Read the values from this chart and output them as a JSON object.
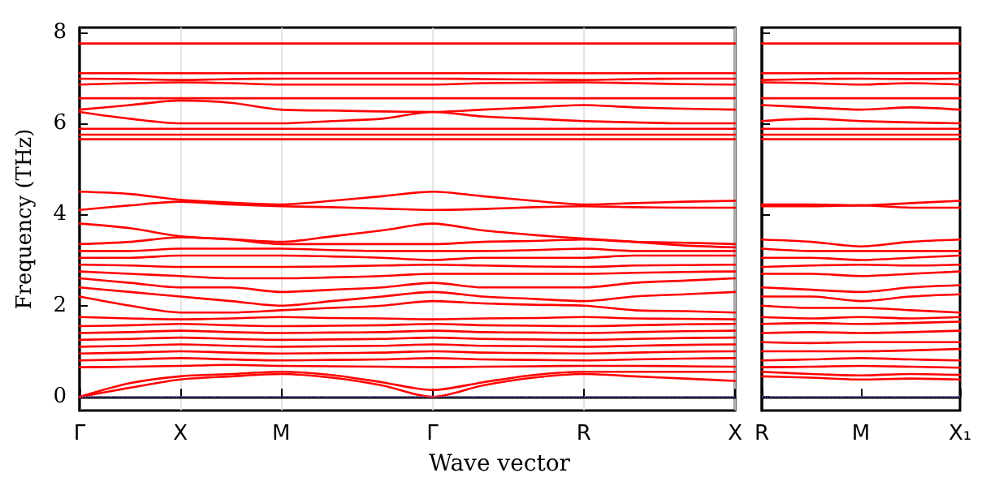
{
  "chart_data": [
    {
      "type": "line",
      "ylabel": "Frequency (THz)",
      "xlabel": "Wave vector",
      "ylim": [
        -0.3,
        8.1
      ],
      "yticks": [
        0,
        2,
        4,
        6,
        8
      ],
      "categories": [
        "Γ",
        null,
        "X",
        null,
        "M",
        null,
        null,
        "Γ",
        null,
        null,
        "R",
        null,
        null,
        "X"
      ],
      "grid": "x",
      "marker": "none",
      "line_style": "solid",
      "ref_lines": [
        {
          "axis": "y",
          "value": 0,
          "color": "#8080ff",
          "line_style": "dotted"
        }
      ],
      "series": [
        {
          "color": "#ff0000",
          "values": [
            0,
            0.2,
            0.38,
            0.45,
            0.5,
            0.42,
            0.25,
            0,
            0.25,
            0.42,
            0.5,
            0.45,
            0.4,
            0.35
          ]
        },
        {
          "color": "#ff0000",
          "values": [
            0,
            0.3,
            0.45,
            0.5,
            0.55,
            0.48,
            0.32,
            0.15,
            0.32,
            0.48,
            0.55,
            0.55,
            0.55,
            0.55
          ]
        },
        {
          "color": "#ff0000",
          "values": [
            0.65,
            0.66,
            0.68,
            0.7,
            0.68,
            0.67,
            0.66,
            0.65,
            0.66,
            0.67,
            0.68,
            0.68,
            0.67,
            0.66
          ]
        },
        {
          "color": "#ff0000",
          "values": [
            0.8,
            0.82,
            0.85,
            0.82,
            0.8,
            0.81,
            0.82,
            0.85,
            0.82,
            0.81,
            0.8,
            0.82,
            0.84,
            0.85
          ]
        },
        {
          "color": "#ff0000",
          "values": [
            0.95,
            0.97,
            1.0,
            0.97,
            0.95,
            0.96,
            0.97,
            1.0,
            0.97,
            0.96,
            0.95,
            0.97,
            0.99,
            1.0
          ]
        },
        {
          "color": "#ff0000",
          "values": [
            1.1,
            1.12,
            1.15,
            1.12,
            1.1,
            1.11,
            1.12,
            1.15,
            1.12,
            1.11,
            1.1,
            1.12,
            1.14,
            1.15
          ]
        },
        {
          "color": "#ff0000",
          "values": [
            1.25,
            1.27,
            1.3,
            1.27,
            1.25,
            1.26,
            1.27,
            1.3,
            1.27,
            1.26,
            1.25,
            1.27,
            1.29,
            1.3
          ]
        },
        {
          "color": "#ff0000",
          "values": [
            1.4,
            1.42,
            1.45,
            1.42,
            1.4,
            1.41,
            1.42,
            1.45,
            1.42,
            1.41,
            1.4,
            1.42,
            1.44,
            1.45
          ]
        },
        {
          "color": "#ff0000",
          "values": [
            1.55,
            1.57,
            1.6,
            1.57,
            1.55,
            1.56,
            1.57,
            1.6,
            1.57,
            1.56,
            1.55,
            1.57,
            1.59,
            1.6
          ]
        },
        {
          "color": "#ff0000",
          "values": [
            1.75,
            1.72,
            1.7,
            1.72,
            1.75,
            1.73,
            1.72,
            1.7,
            1.72,
            1.73,
            1.75,
            1.72,
            1.71,
            1.7
          ]
        },
        {
          "color": "#ff0000",
          "values": [
            2.2,
            2.0,
            1.85,
            1.85,
            1.9,
            1.95,
            2.0,
            2.1,
            2.05,
            2.02,
            2.0,
            1.9,
            1.88,
            1.85
          ]
        },
        {
          "color": "#ff0000",
          "values": [
            2.4,
            2.3,
            2.2,
            2.1,
            2.0,
            2.1,
            2.2,
            2.3,
            2.2,
            2.15,
            2.1,
            2.2,
            2.25,
            2.3
          ]
        },
        {
          "color": "#ff0000",
          "values": [
            2.6,
            2.5,
            2.4,
            2.4,
            2.3,
            2.35,
            2.4,
            2.5,
            2.4,
            2.4,
            2.4,
            2.5,
            2.55,
            2.6
          ]
        },
        {
          "color": "#ff0000",
          "values": [
            2.75,
            2.7,
            2.65,
            2.6,
            2.6,
            2.62,
            2.65,
            2.7,
            2.7,
            2.7,
            2.7,
            2.72,
            2.74,
            2.75
          ]
        },
        {
          "color": "#ff0000",
          "values": [
            2.9,
            2.88,
            2.85,
            2.85,
            2.85,
            2.86,
            2.88,
            2.9,
            2.88,
            2.86,
            2.85,
            2.88,
            2.89,
            2.9
          ]
        },
        {
          "color": "#ff0000",
          "values": [
            3.05,
            3.05,
            3.1,
            3.1,
            3.1,
            3.08,
            3.05,
            3.0,
            3.05,
            3.05,
            3.05,
            3.1,
            3.1,
            3.1
          ]
        },
        {
          "color": "#ff0000",
          "values": [
            3.2,
            3.2,
            3.25,
            3.25,
            3.25,
            3.22,
            3.2,
            3.2,
            3.2,
            3.22,
            3.25,
            3.2,
            3.2,
            3.2
          ]
        },
        {
          "color": "#ff0000",
          "values": [
            3.35,
            3.4,
            3.5,
            3.45,
            3.35,
            3.35,
            3.35,
            3.35,
            3.4,
            3.42,
            3.45,
            3.4,
            3.38,
            3.35
          ]
        },
        {
          "color": "#ff0000",
          "values": [
            3.8,
            3.7,
            3.52,
            3.46,
            3.4,
            3.52,
            3.65,
            3.8,
            3.65,
            3.55,
            3.47,
            3.4,
            3.32,
            3.28
          ]
        },
        {
          "color": "#ff0000",
          "values": [
            4.5,
            4.45,
            4.32,
            4.26,
            4.22,
            4.3,
            4.4,
            4.5,
            4.4,
            4.3,
            4.22,
            4.25,
            4.28,
            4.3
          ]
        },
        {
          "color": "#ff0000",
          "values": [
            4.1,
            4.2,
            4.28,
            4.22,
            4.18,
            4.16,
            4.13,
            4.1,
            4.12,
            4.16,
            4.18,
            4.16,
            4.15,
            4.15
          ]
        },
        {
          "color": "#ff0000",
          "values": [
            5.65,
            5.65,
            5.65,
            5.65,
            5.65,
            5.65,
            5.65,
            5.65,
            5.65,
            5.65,
            5.65,
            5.65,
            5.65,
            5.65
          ]
        },
        {
          "color": "#ff0000",
          "values": [
            5.75,
            5.75,
            5.75,
            5.75,
            5.75,
            5.75,
            5.75,
            5.75,
            5.75,
            5.75,
            5.75,
            5.75,
            5.75,
            5.75
          ]
        },
        {
          "color": "#ff0000",
          "values": [
            5.88,
            5.88,
            5.88,
            5.88,
            5.88,
            5.88,
            5.88,
            5.88,
            5.88,
            5.88,
            5.88,
            5.88,
            5.88,
            5.88
          ]
        },
        {
          "color": "#ff0000",
          "values": [
            6.25,
            6.1,
            6.0,
            6.0,
            6.0,
            6.05,
            6.1,
            6.25,
            6.15,
            6.1,
            6.05,
            6.02,
            6.0,
            6.0
          ]
        },
        {
          "color": "#ff0000",
          "values": [
            6.3,
            6.4,
            6.5,
            6.45,
            6.3,
            6.28,
            6.26,
            6.25,
            6.3,
            6.35,
            6.4,
            6.35,
            6.32,
            6.3
          ]
        },
        {
          "color": "#ff0000",
          "values": [
            6.55,
            6.55,
            6.55,
            6.55,
            6.55,
            6.55,
            6.55,
            6.55,
            6.55,
            6.55,
            6.55,
            6.55,
            6.55,
            6.55
          ]
        },
        {
          "color": "#ff0000",
          "values": [
            6.85,
            6.88,
            6.9,
            6.88,
            6.85,
            6.85,
            6.85,
            6.85,
            6.88,
            6.89,
            6.9,
            6.88,
            6.86,
            6.85
          ]
        },
        {
          "color": "#ff0000",
          "values": [
            6.98,
            6.97,
            6.95,
            6.97,
            6.98,
            6.98,
            6.98,
            6.98,
            6.97,
            6.96,
            6.95,
            6.97,
            6.98,
            6.98
          ]
        },
        {
          "color": "#ff0000",
          "values": [
            7.1,
            7.1,
            7.1,
            7.1,
            7.1,
            7.1,
            7.1,
            7.1,
            7.1,
            7.1,
            7.1,
            7.1,
            7.1,
            7.1
          ]
        },
        {
          "color": "#ff0000",
          "values": [
            7.75,
            7.75,
            7.75,
            7.75,
            7.75,
            7.75,
            7.75,
            7.75,
            7.75,
            7.75,
            7.75,
            7.75,
            7.75,
            7.75
          ]
        }
      ]
    },
    {
      "type": "line",
      "ylim": [
        -0.3,
        8.1
      ],
      "yticks": [
        0,
        2,
        4,
        6,
        8
      ],
      "tick_labels": "x",
      "categories": [
        "R",
        null,
        "M",
        null,
        "X₁"
      ],
      "marker": "none",
      "line_style": "solid",
      "ref_lines": [
        {
          "axis": "y",
          "value": 0,
          "color": "#8080ff",
          "line_style": "dotted"
        }
      ],
      "series": [
        {
          "color": "#ff0000",
          "values": [
            0.45,
            0.42,
            0.38,
            0.4,
            0.38
          ]
        },
        {
          "color": "#ff0000",
          "values": [
            0.55,
            0.5,
            0.47,
            0.5,
            0.48
          ]
        },
        {
          "color": "#ff0000",
          "values": [
            0.65,
            0.66,
            0.68,
            0.66,
            0.64
          ]
        },
        {
          "color": "#ff0000",
          "values": [
            0.8,
            0.82,
            0.85,
            0.82,
            0.8
          ]
        },
        {
          "color": "#ff0000",
          "values": [
            1.0,
            1.0,
            1.0,
            1.02,
            1.05
          ]
        },
        {
          "color": "#ff0000",
          "values": [
            1.2,
            1.18,
            1.2,
            1.2,
            1.2
          ]
        },
        {
          "color": "#ff0000",
          "values": [
            1.4,
            1.42,
            1.4,
            1.42,
            1.45
          ]
        },
        {
          "color": "#ff0000",
          "values": [
            1.6,
            1.62,
            1.6,
            1.62,
            1.65
          ]
        },
        {
          "color": "#ff0000",
          "values": [
            1.75,
            1.72,
            1.75,
            1.72,
            1.75
          ]
        },
        {
          "color": "#ff0000",
          "values": [
            2.0,
            1.95,
            1.95,
            1.9,
            1.85
          ]
        },
        {
          "color": "#ff0000",
          "values": [
            2.2,
            2.2,
            2.1,
            2.2,
            2.25
          ]
        },
        {
          "color": "#ff0000",
          "values": [
            2.4,
            2.35,
            2.3,
            2.4,
            2.45
          ]
        },
        {
          "color": "#ff0000",
          "values": [
            2.7,
            2.7,
            2.65,
            2.7,
            2.75
          ]
        },
        {
          "color": "#ff0000",
          "values": [
            2.85,
            2.88,
            2.9,
            2.88,
            2.9
          ]
        },
        {
          "color": "#ff0000",
          "values": [
            3.05,
            3.05,
            3.0,
            3.05,
            3.1
          ]
        },
        {
          "color": "#ff0000",
          "values": [
            3.25,
            3.2,
            3.2,
            3.2,
            3.2
          ]
        },
        {
          "color": "#ff0000",
          "values": [
            3.45,
            3.4,
            3.3,
            3.4,
            3.45
          ]
        },
        {
          "color": "#ff0000",
          "values": [
            4.22,
            4.22,
            4.2,
            4.25,
            4.3
          ]
        },
        {
          "color": "#ff0000",
          "values": [
            4.18,
            4.18,
            4.2,
            4.15,
            4.15
          ]
        },
        {
          "color": "#ff0000",
          "values": [
            5.65,
            5.65,
            5.65,
            5.65,
            5.65
          ]
        },
        {
          "color": "#ff0000",
          "values": [
            5.75,
            5.75,
            5.75,
            5.75,
            5.75
          ]
        },
        {
          "color": "#ff0000",
          "values": [
            5.88,
            5.88,
            5.88,
            5.88,
            5.88
          ]
        },
        {
          "color": "#ff0000",
          "values": [
            6.05,
            6.1,
            6.05,
            6.02,
            6.0
          ]
        },
        {
          "color": "#ff0000",
          "values": [
            6.4,
            6.35,
            6.3,
            6.35,
            6.3
          ]
        },
        {
          "color": "#ff0000",
          "values": [
            6.55,
            6.55,
            6.55,
            6.55,
            6.55
          ]
        },
        {
          "color": "#ff0000",
          "values": [
            6.9,
            6.88,
            6.85,
            6.88,
            6.85
          ]
        },
        {
          "color": "#ff0000",
          "values": [
            6.95,
            6.97,
            6.98,
            6.97,
            6.98
          ]
        },
        {
          "color": "#ff0000",
          "values": [
            7.1,
            7.1,
            7.1,
            7.1,
            7.1
          ]
        },
        {
          "color": "#ff0000",
          "values": [
            7.75,
            7.75,
            7.75,
            7.75,
            7.75
          ]
        }
      ]
    }
  ]
}
